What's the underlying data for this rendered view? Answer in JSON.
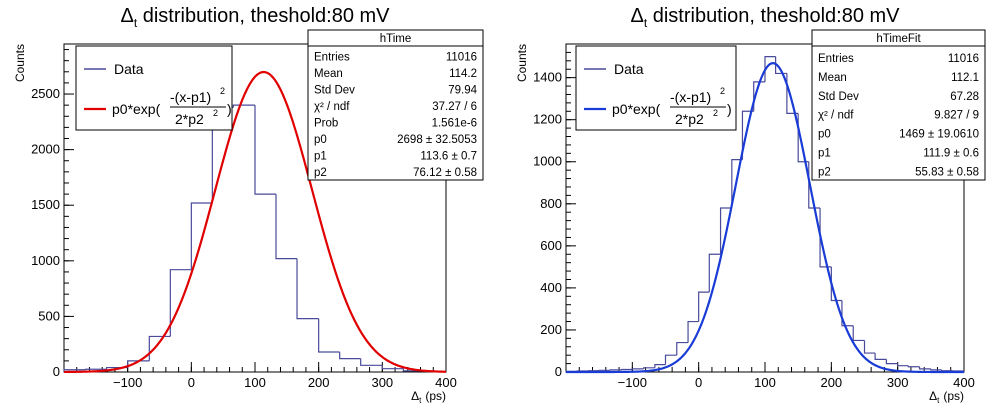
{
  "chart_data": [
    {
      "type": "histogram",
      "title": "Δt distribution, theshold:80 mV",
      "title_main": "Δ",
      "title_sub": "t",
      "title_rest": " distribution, theshold:80 mV",
      "xlabel_main": "Δ",
      "xlabel_sub": "t",
      "xlabel_rest": "(ps)",
      "ylabel": "Counts",
      "xlim": [
        -200,
        400
      ],
      "ylim": [
        0,
        2950
      ],
      "xticks": [
        -100,
        0,
        100,
        200,
        300,
        400
      ],
      "xtick_labels": [
        "−100",
        "0",
        "100",
        "200",
        "300",
        "400"
      ],
      "yticks": [
        0,
        500,
        1000,
        1500,
        2000,
        2500
      ],
      "ytick_labels": [
        "0",
        "500",
        "1000",
        "1500",
        "2000",
        "2500"
      ],
      "bin_edges": [
        -200,
        -166,
        -133,
        -100,
        -66,
        -33,
        0,
        33,
        66,
        100,
        133,
        166,
        200,
        233,
        266,
        300,
        333,
        366,
        400
      ],
      "values": [
        20,
        25,
        40,
        100,
        320,
        920,
        1520,
        2380,
        2400,
        1600,
        1020,
        480,
        180,
        120,
        60,
        30,
        10,
        5
      ],
      "fit": {
        "function": "gaussian",
        "p0": 2698,
        "p1": 113.6,
        "p2": 76.12,
        "color": "#e00000"
      },
      "hist_color": "#4a4a9a",
      "legend": {
        "data_label": "Data",
        "fit_prefix": "p0*exp(",
        "numerator": "-(x-p1)",
        "numerator_sup": "2",
        "denominator": "2*p2",
        "denominator_sup": "2",
        "fit_suffix": ")"
      },
      "stats": {
        "name": "hTime",
        "rows": [
          {
            "label": "Entries",
            "value": "11016"
          },
          {
            "label": "Mean",
            "value": "114.2"
          },
          {
            "label": "Std Dev",
            "value": "79.94"
          },
          {
            "label": "χ² / ndf",
            "value": "37.27 / 6"
          },
          {
            "label": "Prob",
            "value": "1.561e-6"
          },
          {
            "label": "p0",
            "value": "2698 ± 32.5053"
          },
          {
            "label": "p1",
            "value": "113.6 ± 0.7"
          },
          {
            "label": "p2",
            "value": "76.12 ± 0.58"
          }
        ]
      }
    },
    {
      "type": "histogram",
      "title": "Δt distribution, theshold:80 mV",
      "title_main": "Δ",
      "title_sub": "t",
      "title_rest": " distribution, theshold:80 mV",
      "xlabel_main": "Δ",
      "xlabel_sub": "t",
      "xlabel_rest": "(ps)",
      "ylabel": "Counts",
      "xlim": [
        -200,
        400
      ],
      "ylim": [
        0,
        1560
      ],
      "xticks": [
        -100,
        0,
        100,
        200,
        300,
        400
      ],
      "xtick_labels": [
        "−100",
        "0",
        "100",
        "200",
        "300",
        "400"
      ],
      "yticks": [
        0,
        200,
        400,
        600,
        800,
        1000,
        1200,
        1400
      ],
      "ytick_labels": [
        "0",
        "200",
        "400",
        "600",
        "800",
        "1000",
        "1200",
        "1400"
      ],
      "bin_edges": [
        -200,
        -183,
        -166,
        -150,
        -133,
        -116,
        -100,
        -83,
        -66,
        -50,
        -33,
        -16,
        0,
        16,
        33,
        50,
        66,
        83,
        100,
        116,
        133,
        150,
        166,
        183,
        200,
        216,
        233,
        250,
        266,
        283,
        300,
        316,
        333,
        350,
        366,
        383,
        400
      ],
      "values": [
        3,
        5,
        6,
        8,
        10,
        12,
        15,
        20,
        35,
        80,
        140,
        240,
        380,
        560,
        780,
        1010,
        1240,
        1380,
        1500,
        1420,
        1230,
        1000,
        780,
        500,
        340,
        220,
        150,
        90,
        60,
        40,
        30,
        25,
        15,
        10,
        6,
        5
      ],
      "fit": {
        "function": "gaussian",
        "p0": 1469,
        "p1": 111.9,
        "p2": 55.83,
        "color": "#1a3cd6"
      },
      "hist_color": "#4a4a9a",
      "legend": {
        "data_label": "Data",
        "fit_prefix": "p0*exp(",
        "numerator": "-(x-p1)",
        "numerator_sup": "2",
        "denominator": "2*p2",
        "denominator_sup": "2",
        "fit_suffix": ")"
      },
      "stats": {
        "name": "hTimeFit",
        "rows": [
          {
            "label": "Entries",
            "value": "11016"
          },
          {
            "label": "Mean",
            "value": "112.1"
          },
          {
            "label": "Std Dev",
            "value": "67.28"
          },
          {
            "label": "χ² / ndf",
            "value": "9.827 / 9"
          },
          {
            "label": "p0",
            "value": "1469 ± 19.0610"
          },
          {
            "label": "p1",
            "value": "111.9 ± 0.6"
          },
          {
            "label": "p2",
            "value": "55.83 ± 0.58"
          }
        ]
      }
    }
  ]
}
